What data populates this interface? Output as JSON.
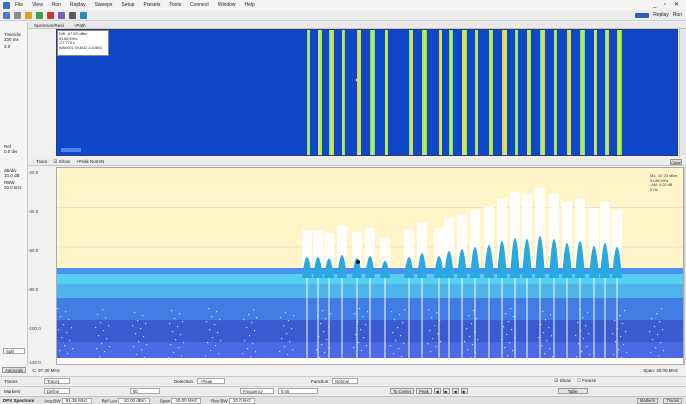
{
  "menu": [
    "File",
    "View",
    "Run",
    "Replay",
    "Sweeps",
    "Setup",
    "Presets",
    "Tools",
    "Connect",
    "Window",
    "Help"
  ],
  "toolbar": {
    "replay_label": "Replay",
    "run_label": "Run"
  },
  "window_controls": "_ ▫ ✕",
  "tabs": {
    "tab1": "Spectrum/Real",
    "tab2": "+Path"
  },
  "left_top": {
    "time_label": "Time/div",
    "time_value": "200 ms",
    "auto_label": "3.0",
    "ref_label": "Ref",
    "ref_value": "0.0 div"
  },
  "waterfall_overlay": {
    "line1": "Diff: -67.5/0 dBm",
    "line2": "91.88 MHz",
    "line3": "-27.775 s",
    "line4": "WAV001 9/16/22 2:10801"
  },
  "trace_bar": {
    "label": "Trace",
    "show_label": "Show",
    "detector": "+Peak NormN",
    "clear_label": "Clear"
  },
  "left_spec": {
    "ref_label": "dB/div",
    "ref_value": "10.0 dB",
    "rbw_label": "RBW",
    "rbw_value": "20.0 kHz",
    "dropdown_value": "Split"
  },
  "y_ticks": [
    "-20.0",
    "-40.0",
    "-60.0",
    "-80.0",
    "-100.0",
    "-120.0"
  ],
  "marker_readout": {
    "line1": "M1: -67.33 dBm",
    "line2": "91.88 MHz",
    "line3": "-ΔM: 0.00 dB",
    "line4": "0 Hz"
  },
  "info": {
    "autoscale_label": "Autoscale",
    "center_label": "C: 97.30 MHz",
    "span_label": "Span: 40.00 MHz"
  },
  "trace_row": {
    "label": "Traces",
    "trace_select": "Trace1",
    "detection_label": "Detection",
    "detection_value": "+Peak",
    "function_label": "Function",
    "function_value": "Normal",
    "show_label": "Show",
    "freeze_label": "Freeze"
  },
  "markers_row": {
    "label": "Markers",
    "marker_select": "Define",
    "value": "60",
    "mode_value": "Frequency",
    "freq_value": "0.00",
    "toCenter_label": "To Center",
    "peak_label": "Peak",
    "table_label": "Table"
  },
  "status": {
    "app": "DPX Spectrum",
    "acq_label": "Acq BW",
    "acq_value": "91.36 MHz",
    "ref_label": "Ref Lev",
    "ref_value": "-10.00 dBm",
    "span_label": "Span",
    "span_value": "40.00 MHz",
    "rbw_label": "Res BW",
    "rbw_value": "20.0 kHz",
    "markers_label": "Markers",
    "traces_label": "Traces"
  },
  "colors": {
    "waterfall_bg": "#0e47c7",
    "spectrum_band": "#fff5c8",
    "trace": "#2aa9e0",
    "noise_blue": "#1a3fd2"
  }
}
